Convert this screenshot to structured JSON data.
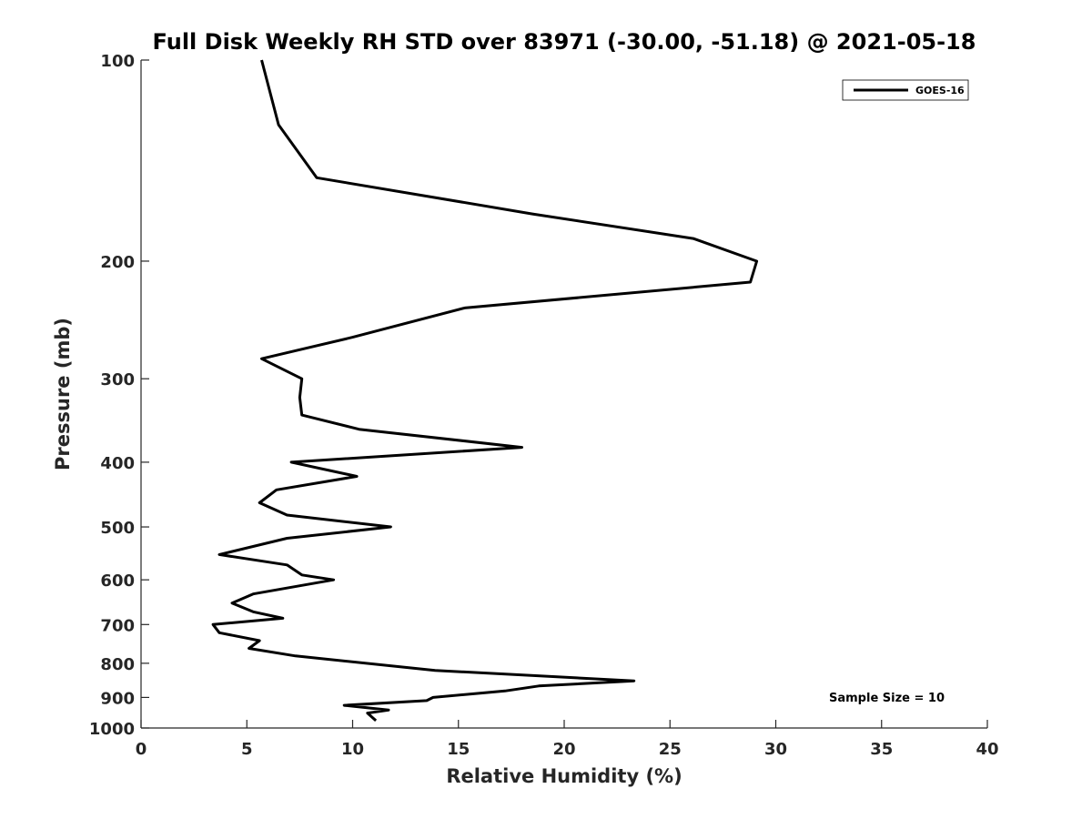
{
  "chart_data": {
    "type": "line",
    "title": "Full Disk Weekly RH STD over 83971 (-30.00, -51.18) @ 2021-05-18",
    "xlabel": "Relative Humidity (%)",
    "ylabel": "Pressure (mb)",
    "xlim": [
      0,
      40
    ],
    "ylim": [
      100,
      1000
    ],
    "y_scale": "log",
    "y_reversed": true,
    "xticks": [
      0,
      5,
      10,
      15,
      20,
      25,
      30,
      35,
      40
    ],
    "yticks": [
      100,
      200,
      300,
      400,
      500,
      600,
      700,
      800,
      900,
      1000
    ],
    "grid": false,
    "legend_position": "top-right",
    "annotation": "Sample Size = 10",
    "series": [
      {
        "name": "GOES-16",
        "color": "#000000",
        "points": [
          [
            5.7,
            100
          ],
          [
            6.5,
            125
          ],
          [
            8.3,
            150
          ],
          [
            18.5,
            170
          ],
          [
            26.1,
            185
          ],
          [
            29.1,
            200
          ],
          [
            28.8,
            215
          ],
          [
            15.3,
            235
          ],
          [
            10.0,
            260
          ],
          [
            5.7,
            280
          ],
          [
            7.6,
            300
          ],
          [
            7.5,
            320
          ],
          [
            7.6,
            340
          ],
          [
            10.3,
            357
          ],
          [
            18.0,
            380
          ],
          [
            7.1,
            400
          ],
          [
            10.2,
            420
          ],
          [
            6.4,
            440
          ],
          [
            5.6,
            460
          ],
          [
            6.9,
            480
          ],
          [
            11.8,
            500
          ],
          [
            6.9,
            520
          ],
          [
            3.7,
            550
          ],
          [
            6.9,
            570
          ],
          [
            7.6,
            590
          ],
          [
            9.1,
            600
          ],
          [
            5.3,
            630
          ],
          [
            4.3,
            650
          ],
          [
            5.3,
            670
          ],
          [
            6.7,
            685
          ],
          [
            3.4,
            700
          ],
          [
            3.7,
            720
          ],
          [
            5.6,
            740
          ],
          [
            5.1,
            760
          ],
          [
            7.3,
            780
          ],
          [
            13.9,
            820
          ],
          [
            23.3,
            850
          ],
          [
            18.8,
            865
          ],
          [
            17.2,
            880
          ],
          [
            13.8,
            900
          ],
          [
            13.5,
            910
          ],
          [
            9.6,
            925
          ],
          [
            11.7,
            940
          ],
          [
            10.7,
            950
          ],
          [
            11.1,
            975
          ]
        ]
      }
    ]
  }
}
